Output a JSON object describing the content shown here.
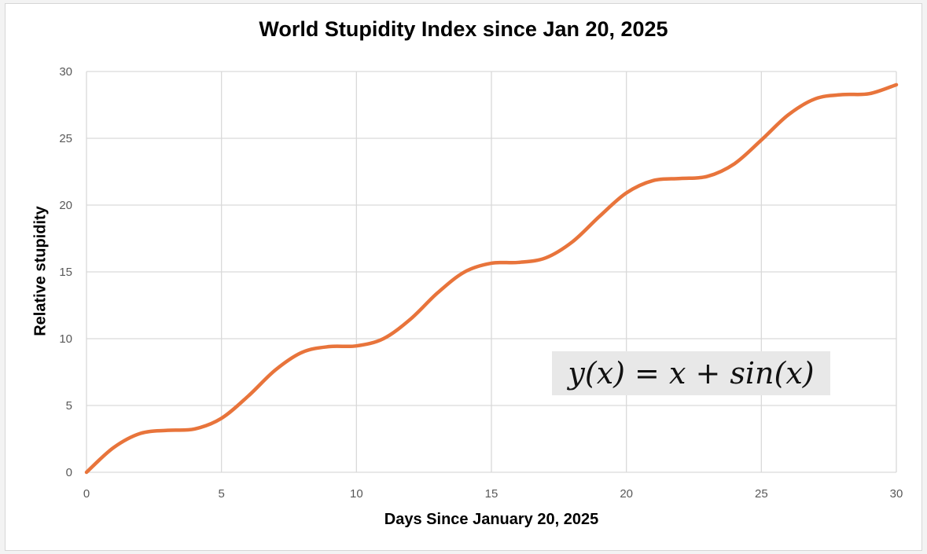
{
  "chart_data": {
    "type": "line",
    "title": "World Stupidity Index since Jan 20, 2025",
    "xlabel": "Days Since January 20, 2025",
    "ylabel": "Relative stupidity",
    "xlim": [
      0,
      30
    ],
    "ylim": [
      0,
      30
    ],
    "x_ticks": [
      "0",
      "5",
      "10",
      "15",
      "20",
      "25",
      "30"
    ],
    "y_ticks": [
      "0",
      "5",
      "10",
      "15",
      "20",
      "25",
      "30"
    ],
    "grid": true,
    "legend": "none",
    "annotation": "y(x) = x + sin(x)",
    "series": [
      {
        "color": "#E8743B",
        "x": [
          0,
          1,
          2,
          3,
          4,
          5,
          6,
          7,
          8,
          9,
          10,
          11,
          12,
          13,
          14,
          15,
          16,
          17,
          18,
          19,
          20,
          21,
          22,
          23,
          24,
          25,
          26,
          27,
          28,
          29,
          30
        ],
        "y": [
          0,
          1.84,
          2.91,
          3.14,
          3.24,
          4.04,
          5.72,
          7.66,
          8.99,
          9.41,
          9.46,
          10,
          11.46,
          13.42,
          14.99,
          15.65,
          15.71,
          16.04,
          17.25,
          19.15,
          20.91,
          21.84,
          21.99,
          22.15,
          23.09,
          24.87,
          26.76,
          27.96,
          28.27,
          28.34,
          29.01
        ]
      }
    ]
  }
}
